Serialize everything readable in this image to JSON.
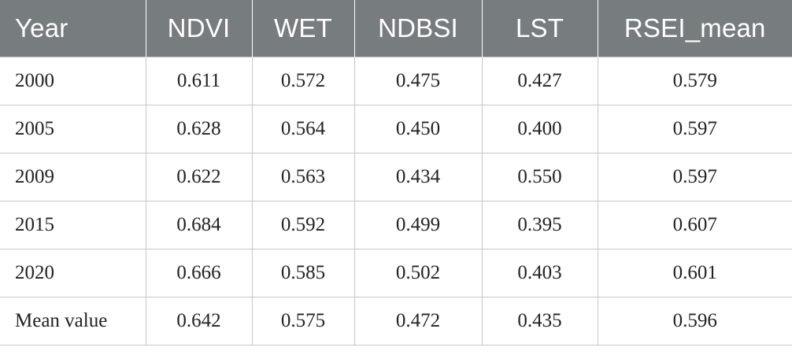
{
  "table": {
    "columns": [
      "Year",
      "NDVI",
      "WET",
      "NDBSI",
      "LST",
      "RSEI_mean"
    ],
    "rows": [
      [
        "2000",
        "0.611",
        "0.572",
        "0.475",
        "0.427",
        "0.579"
      ],
      [
        "2005",
        "0.628",
        "0.564",
        "0.450",
        "0.400",
        "0.597"
      ],
      [
        "2009",
        "0.622",
        "0.563",
        "0.434",
        "0.550",
        "0.597"
      ],
      [
        "2015",
        "0.684",
        "0.592",
        "0.499",
        "0.395",
        "0.607"
      ],
      [
        "2020",
        "0.666",
        "0.585",
        "0.502",
        "0.403",
        "0.601"
      ],
      [
        "Mean value",
        "0.642",
        "0.575",
        "0.472",
        "0.435",
        "0.596"
      ]
    ]
  },
  "colors": {
    "header_bg": "#777c7e",
    "header_text": "#ffffff",
    "grid": "#c8c8c8"
  }
}
